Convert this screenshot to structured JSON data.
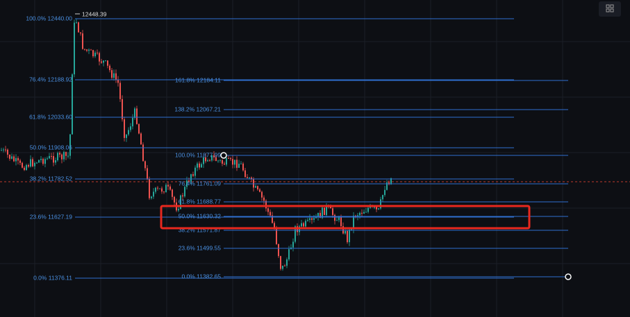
{
  "high_label": "12448.39",
  "left_fib": [
    "100.0% 12440.00",
    "76.4% 12188.92",
    "61.8% 12033.60",
    "50.0% 11908.06",
    "38.2% 11782.52",
    "23.6% 11627.19",
    "0.0% 11376.11"
  ],
  "right_fib": [
    "161.8% 12184.11",
    "138.2% 12067.21",
    "100.0% 11877.99",
    "76.4% 11761.09",
    "61.8% 11688.77",
    "50.0% 11630.32",
    "38.2% 11571.87",
    "23.6% 11499.55",
    "0.0% 11382.65"
  ]
}
